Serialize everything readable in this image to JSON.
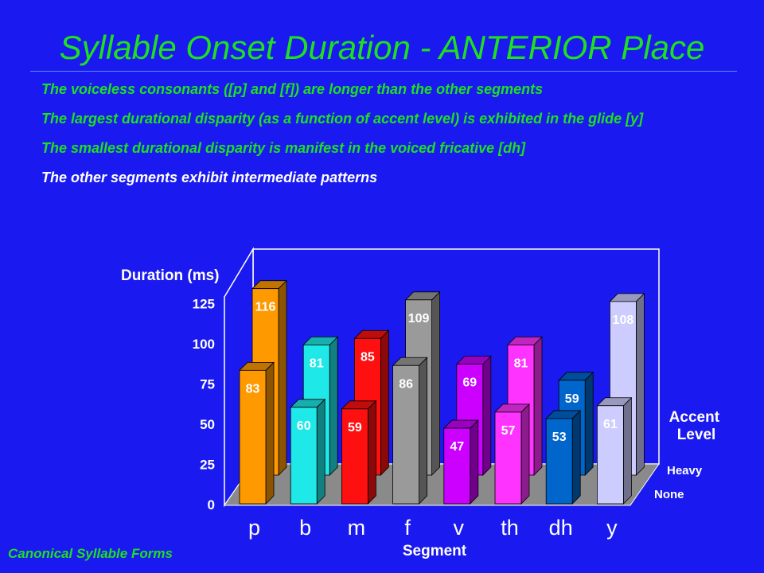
{
  "slide": {
    "title": "Syllable Onset Duration - ANTERIOR Place",
    "bullets": [
      "The voiceless consonants ([p] and [f]) are longer than the other segments",
      "The largest durational disparity (as a function of accent level) is exhibited in the glide [y]",
      "The smallest durational disparity is manifest in the voiced fricative [dh]",
      "The other segments exhibit intermediate patterns"
    ],
    "footer": "Canonical Syllable Forms"
  },
  "colors": {
    "background": "#1a1af0",
    "text_green": "#1fe01f",
    "floor": "#8a8a8a"
  },
  "chart_data": {
    "type": "bar",
    "ylabel": "Duration (ms)",
    "xlabel": "Segment",
    "legend_title": "Accent Level",
    "yticks": [
      0,
      25,
      50,
      75,
      100,
      125
    ],
    "ylim": [
      0,
      125
    ],
    "categories": [
      "p",
      "b",
      "m",
      "f",
      "v",
      "th",
      "dh",
      "y"
    ],
    "series": [
      {
        "name": "Heavy",
        "values": [
          116,
          81,
          85,
          109,
          69,
          81,
          59,
          108
        ]
      },
      {
        "name": "None",
        "values": [
          83,
          60,
          59,
          86,
          47,
          57,
          53,
          61
        ]
      }
    ],
    "bar_colors": [
      "#ff9900",
      "#1fe8e8",
      "#ff1010",
      "#9a9a9a",
      "#cc00ff",
      "#ff33ff",
      "#0066cc",
      "#ccccff"
    ],
    "legend_placement": "right"
  }
}
